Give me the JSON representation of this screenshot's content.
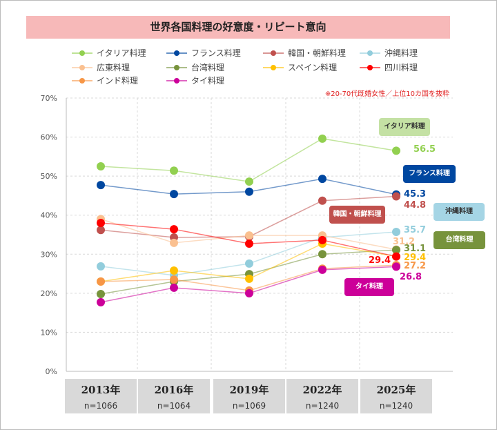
{
  "title": "世界各国料理の好意度・リピート意向",
  "note": "※20-70代既婚女性／上位10カ国を抜粋",
  "chart_data": {
    "type": "line",
    "title": "世界各国料理の好意度・リピート意向",
    "categories": [
      "2013年",
      "2016年",
      "2019年",
      "2022年",
      "2025年"
    ],
    "sample_sizes": [
      "n=1066",
      "n=1064",
      "n=1069",
      "n=1240",
      "n=1240"
    ],
    "yticks": [
      "0%",
      "10%",
      "20%",
      "30%",
      "40%",
      "50%",
      "60%",
      "70%"
    ],
    "ylim": [
      0,
      70
    ],
    "grid": true,
    "legend": "top",
    "series": [
      {
        "name": "イタリア料理",
        "color": "#92d050",
        "values": [
          52.5,
          51.4,
          48.6,
          59.6,
          56.5
        ],
        "label": "56.5",
        "callout": "イタリア料理"
      },
      {
        "name": "フランス料理",
        "color": "#0047a0",
        "values": [
          47.7,
          45.4,
          46.0,
          49.3,
          45.3
        ],
        "label": "45.3",
        "callout": "フランス料理"
      },
      {
        "name": "韓国・朝鮮料理",
        "color": "#c0504d",
        "values": [
          36.2,
          34.3,
          34.5,
          43.7,
          44.8
        ],
        "label": "44.8",
        "callout": "韓国・朝鮮料理"
      },
      {
        "name": "沖縄料理",
        "color": "#92cddc",
        "values": [
          26.9,
          24.6,
          27.6,
          34.3,
          35.7
        ],
        "label": "35.7",
        "callout": "沖縄料理"
      },
      {
        "name": "広東料理",
        "color": "#fac090",
        "values": [
          39.0,
          32.9,
          34.8,
          34.8,
          31.2
        ],
        "label": "31.2"
      },
      {
        "name": "台湾料理",
        "color": "#77933c",
        "values": [
          19.8,
          23.0,
          24.9,
          30.0,
          31.1
        ],
        "label": "31.1",
        "callout": "台湾料理"
      },
      {
        "name": "スペイン料理",
        "color": "#ffc000",
        "values": [
          23.0,
          25.8,
          23.7,
          32.7,
          29.4
        ],
        "label": "29.4"
      },
      {
        "name": "四川料理",
        "color": "#ff0000",
        "values": [
          38.0,
          36.4,
          32.7,
          33.6,
          29.4
        ],
        "label": "29.4"
      },
      {
        "name": "インド料理",
        "color": "#f79646",
        "values": [
          23.0,
          23.5,
          20.7,
          26.3,
          27.2
        ],
        "label": "27.2"
      },
      {
        "name": "タイ料理",
        "color": "#cc0099",
        "values": [
          17.7,
          21.4,
          20.0,
          26.0,
          26.8
        ],
        "label": "26.8",
        "callout": "タイ料理"
      }
    ]
  }
}
